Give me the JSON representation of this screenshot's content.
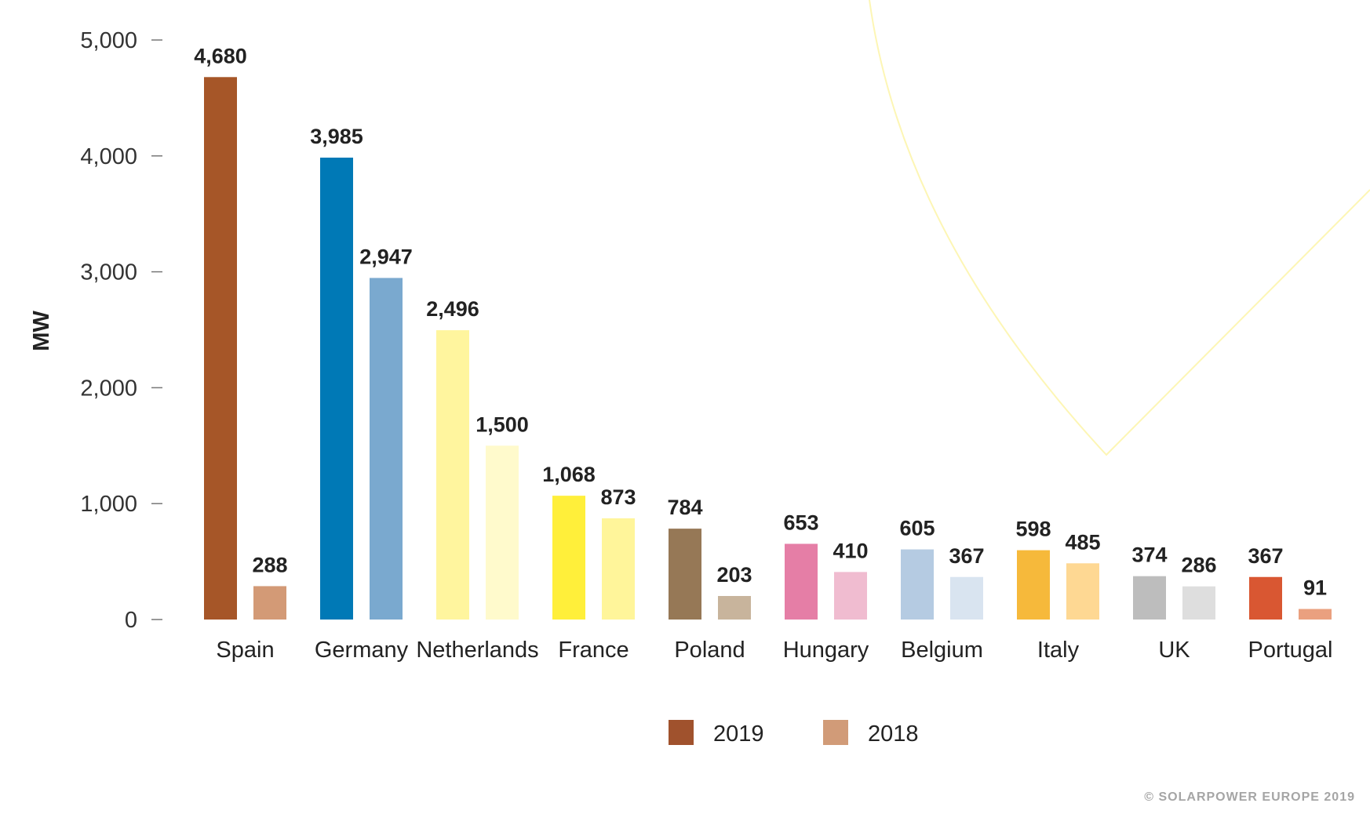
{
  "chart_data": {
    "type": "bar",
    "ylabel": "MW",
    "ylim": [
      0,
      5000
    ],
    "yticks": [
      0,
      1000,
      2000,
      3000,
      4000,
      5000
    ],
    "ytick_labels": [
      "0",
      "1,000",
      "2,000",
      "3,000",
      "4,000",
      "5,000"
    ],
    "grid": false,
    "legend_position": "bottom-center",
    "categories": [
      "Spain",
      "Germany",
      "Netherlands",
      "France",
      "Poland",
      "Hungary",
      "Belgium",
      "Italy",
      "UK",
      "Portugal"
    ],
    "series": [
      {
        "name": "2019",
        "values": [
          4680,
          3985,
          2496,
          1068,
          784,
          653,
          605,
          598,
          374,
          367
        ],
        "labels": [
          "4,680",
          "3,985",
          "2,496",
          "1,068",
          "784",
          "653",
          "605",
          "598",
          "374",
          "367"
        ],
        "legend_color": "#a0522d",
        "colors": [
          "#a65628",
          "#0079b6",
          "#fff59e",
          "#ffef3a",
          "#967856",
          "#e57ea6",
          "#b5cbe2",
          "#f6b93b",
          "#bdbdbd",
          "#d95732"
        ]
      },
      {
        "name": "2018",
        "values": [
          288,
          2947,
          1500,
          873,
          203,
          410,
          367,
          485,
          286,
          91
        ],
        "labels": [
          "288",
          "2,947",
          "1,500",
          "873",
          "203",
          "410",
          "367",
          "485",
          "286",
          "91"
        ],
        "legend_color": "#d19b78",
        "colors": [
          "#d39a76",
          "#7aa9cf",
          "#fffacc",
          "#fff59a",
          "#c8b49c",
          "#f0bcd0",
          "#d9e4f0",
          "#fed893",
          "#dedede",
          "#eaa07f"
        ]
      }
    ]
  },
  "copyright": "© SOLARPOWER EUROPE 2019",
  "colors": {
    "axis": "#777777",
    "decoration": "#fdf6b5"
  }
}
